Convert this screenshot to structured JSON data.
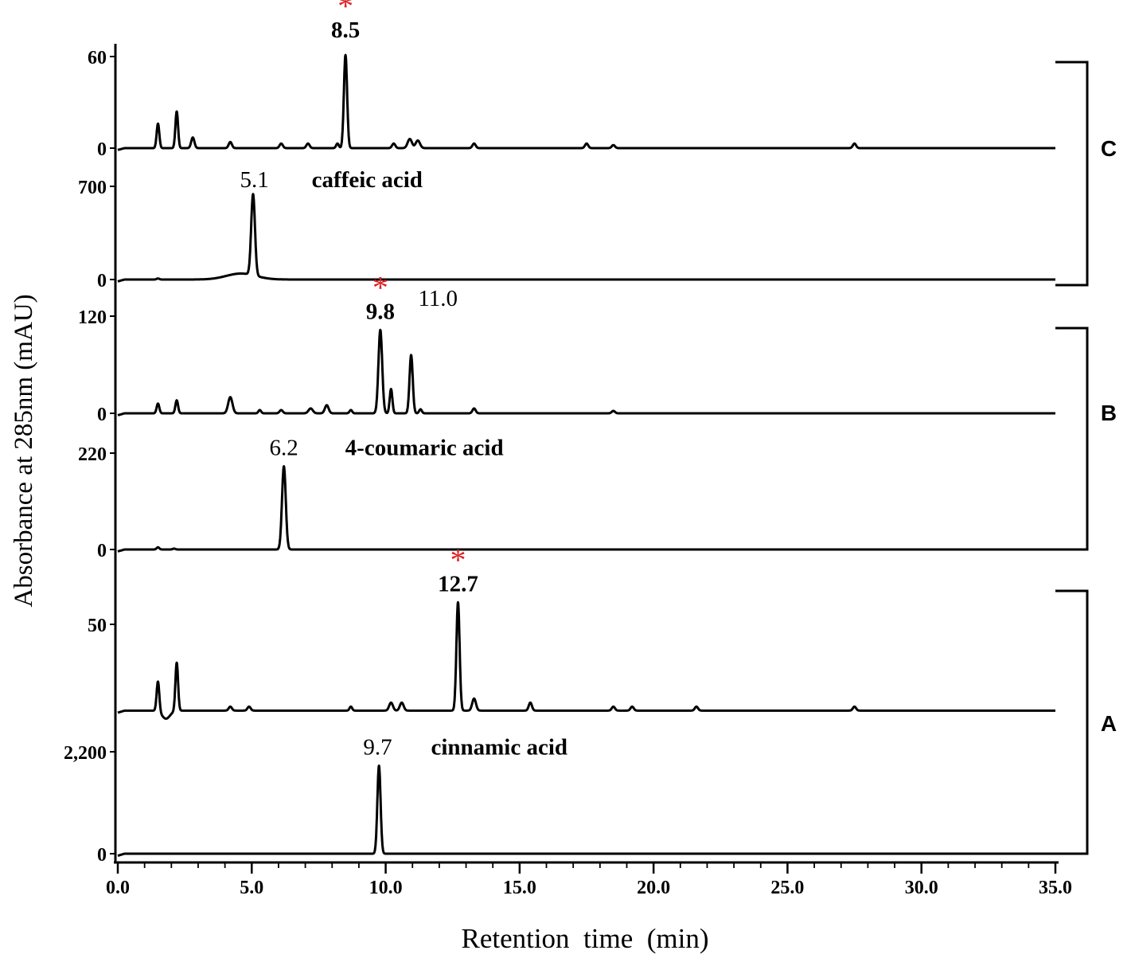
{
  "chart_data": {
    "type": "line",
    "xlabel": "Retention  time  (min)",
    "ylabel": "Absorbance at 285nm (mAU)",
    "xlim": [
      0,
      35
    ],
    "x_ticks": [
      "0.0",
      "5.0",
      "10.0",
      "15.0",
      "20.0",
      "25.0",
      "30.0",
      "35.0"
    ],
    "highlight_color": "#e02020",
    "groups": [
      {
        "label": "C",
        "panels": [
          0,
          1
        ]
      },
      {
        "label": "B",
        "panels": [
          2,
          3
        ]
      },
      {
        "label": "A",
        "panels": [
          4,
          5
        ]
      }
    ],
    "panels": [
      {
        "id": "C-sample",
        "y_ticks": [
          {
            "value": 0,
            "label": "0"
          },
          {
            "value": 60,
            "label": "60"
          }
        ],
        "baseline": 0,
        "peaks": [
          {
            "rt": 1.5,
            "h": 16,
            "w": 0.05
          },
          {
            "rt": 2.2,
            "h": 24,
            "w": 0.05
          },
          {
            "rt": 2.8,
            "h": 7,
            "w": 0.06
          },
          {
            "rt": 4.2,
            "h": 4,
            "w": 0.06
          },
          {
            "rt": 6.1,
            "h": 3,
            "w": 0.06
          },
          {
            "rt": 7.1,
            "h": 3,
            "w": 0.06
          },
          {
            "rt": 8.2,
            "h": 3,
            "w": 0.05
          },
          {
            "rt": 8.5,
            "h": 61,
            "w": 0.06
          },
          {
            "rt": 10.3,
            "h": 3,
            "w": 0.06
          },
          {
            "rt": 10.9,
            "h": 6,
            "w": 0.08
          },
          {
            "rt": 11.2,
            "h": 5,
            "w": 0.08
          },
          {
            "rt": 13.3,
            "h": 3,
            "w": 0.06
          },
          {
            "rt": 17.5,
            "h": 3,
            "w": 0.06
          },
          {
            "rt": 18.5,
            "h": 2,
            "w": 0.06
          },
          {
            "rt": 27.5,
            "h": 3,
            "w": 0.06
          }
        ],
        "annotations": [
          {
            "rt": 8.5,
            "number": "8.5",
            "name": "",
            "star": true
          }
        ]
      },
      {
        "id": "C-standard",
        "y_ticks": [
          {
            "value": 0,
            "label": "0"
          },
          {
            "value": 700,
            "label": "700"
          }
        ],
        "baseline": 0,
        "peaks": [
          {
            "rt": 4.6,
            "h": 45,
            "w": 0.55
          },
          {
            "rt": 5.05,
            "h": 610,
            "w": 0.07
          },
          {
            "rt": 1.5,
            "h": 8,
            "w": 0.05
          }
        ],
        "annotations": [
          {
            "rt": 5.1,
            "number": "5.1",
            "name": "caffeic acid",
            "star": false
          }
        ]
      },
      {
        "id": "B-sample",
        "y_ticks": [
          {
            "value": 0,
            "label": "0"
          },
          {
            "value": 120,
            "label": "120"
          }
        ],
        "baseline": 0,
        "peaks": [
          {
            "rt": 1.5,
            "h": 12,
            "w": 0.05
          },
          {
            "rt": 2.2,
            "h": 16,
            "w": 0.05
          },
          {
            "rt": 4.2,
            "h": 20,
            "w": 0.08
          },
          {
            "rt": 5.3,
            "h": 4,
            "w": 0.05
          },
          {
            "rt": 6.1,
            "h": 4,
            "w": 0.06
          },
          {
            "rt": 7.2,
            "h": 6,
            "w": 0.08
          },
          {
            "rt": 7.8,
            "h": 10,
            "w": 0.07
          },
          {
            "rt": 8.7,
            "h": 4,
            "w": 0.05
          },
          {
            "rt": 9.8,
            "h": 103,
            "w": 0.07
          },
          {
            "rt": 10.2,
            "h": 30,
            "w": 0.05
          },
          {
            "rt": 10.95,
            "h": 72,
            "w": 0.06
          },
          {
            "rt": 11.3,
            "h": 5,
            "w": 0.05
          },
          {
            "rt": 13.3,
            "h": 6,
            "w": 0.06
          },
          {
            "rt": 18.5,
            "h": 3,
            "w": 0.06
          }
        ],
        "annotations": [
          {
            "rt": 9.8,
            "number": "9.8",
            "name": "",
            "star": true
          },
          {
            "rt": 11.0,
            "number": "11.0",
            "name": "",
            "star": false
          }
        ]
      },
      {
        "id": "B-standard",
        "y_ticks": [
          {
            "value": 0,
            "label": "0"
          },
          {
            "value": 220,
            "label": "220"
          }
        ],
        "baseline": 0,
        "peaks": [
          {
            "rt": 6.2,
            "h": 190,
            "w": 0.07
          },
          {
            "rt": 1.5,
            "h": 5,
            "w": 0.05
          },
          {
            "rt": 2.1,
            "h": 2,
            "w": 0.05
          }
        ],
        "annotations": [
          {
            "rt": 6.2,
            "number": "6.2",
            "name": "4-coumaric acid",
            "star": false
          }
        ]
      },
      {
        "id": "A-sample",
        "y_ticks": [
          {
            "value": 50,
            "label": "50"
          }
        ],
        "baseline": 7,
        "peaks": [
          {
            "rt": 1.5,
            "h": 15,
            "w": 0.05
          },
          {
            "rt": 1.8,
            "h": -4,
            "w": 0.15
          },
          {
            "rt": 2.2,
            "h": 24,
            "w": 0.05
          },
          {
            "rt": 4.2,
            "h": 2,
            "w": 0.06
          },
          {
            "rt": 4.9,
            "h": 2,
            "w": 0.06
          },
          {
            "rt": 8.7,
            "h": 2,
            "w": 0.05
          },
          {
            "rt": 10.2,
            "h": 4,
            "w": 0.07
          },
          {
            "rt": 10.6,
            "h": 4,
            "w": 0.07
          },
          {
            "rt": 12.7,
            "h": 54,
            "w": 0.06
          },
          {
            "rt": 13.3,
            "h": 6,
            "w": 0.07
          },
          {
            "rt": 15.4,
            "h": 4,
            "w": 0.06
          },
          {
            "rt": 18.5,
            "h": 2,
            "w": 0.06
          },
          {
            "rt": 19.2,
            "h": 2,
            "w": 0.06
          },
          {
            "rt": 21.6,
            "h": 2,
            "w": 0.06
          },
          {
            "rt": 27.5,
            "h": 2,
            "w": 0.06
          }
        ],
        "annotations": [
          {
            "rt": 12.7,
            "number": "12.7",
            "name": "",
            "star": true
          }
        ]
      },
      {
        "id": "A-standard",
        "y_ticks": [
          {
            "value": 0,
            "label": "0"
          },
          {
            "value": 2200,
            "label": "2,200"
          }
        ],
        "baseline": 0,
        "peaks": [
          {
            "rt": 9.75,
            "h": 1900,
            "w": 0.06
          }
        ],
        "annotations": [
          {
            "rt": 9.7,
            "number": "9.7",
            "name": "cinnamic acid",
            "star": false
          }
        ]
      }
    ]
  }
}
